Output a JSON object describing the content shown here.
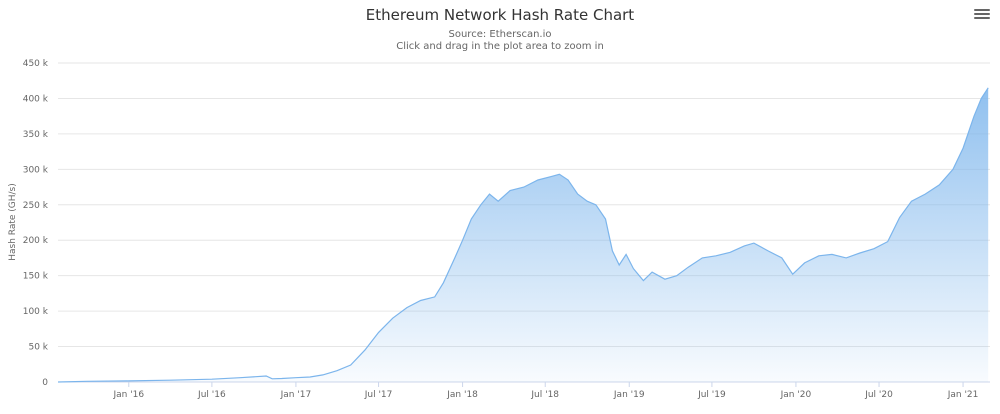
{
  "chart_data": {
    "type": "area",
    "title": "Ethereum Network Hash Rate Chart",
    "subtitle": "Source: Etherscan.io",
    "subtitle2": "Click and drag in the plot area to zoom in",
    "ylabel": "Hash Rate (GH/s)",
    "xlabel": "",
    "ylim": [
      0,
      450000
    ],
    "xlim": [
      "2015-07-30",
      "2021-03-01"
    ],
    "grid": true,
    "legend": "none",
    "series_color": "#7cb5ec",
    "y_ticks": [
      {
        "value": 0,
        "label": "0"
      },
      {
        "value": 50000,
        "label": "50 k"
      },
      {
        "value": 100000,
        "label": "100 k"
      },
      {
        "value": 150000,
        "label": "150 k"
      },
      {
        "value": 200000,
        "label": "200 k"
      },
      {
        "value": 250000,
        "label": "250 k"
      },
      {
        "value": 300000,
        "label": "300 k"
      },
      {
        "value": 350000,
        "label": "350 k"
      },
      {
        "value": 400000,
        "label": "400 k"
      },
      {
        "value": 450000,
        "label": "450 k"
      }
    ],
    "x_ticks": [
      {
        "date": "2016-01-01",
        "label": "Jan '16"
      },
      {
        "date": "2016-07-01",
        "label": "Jul '16"
      },
      {
        "date": "2017-01-01",
        "label": "Jan '17"
      },
      {
        "date": "2017-07-01",
        "label": "Jul '17"
      },
      {
        "date": "2018-01-01",
        "label": "Jan '18"
      },
      {
        "date": "2018-07-01",
        "label": "Jul '18"
      },
      {
        "date": "2019-01-01",
        "label": "Jan '19"
      },
      {
        "date": "2019-07-01",
        "label": "Jul '19"
      },
      {
        "date": "2020-01-01",
        "label": "Jan '20"
      },
      {
        "date": "2020-07-01",
        "label": "Jul '20"
      },
      {
        "date": "2021-01-01",
        "label": "Jan '21"
      }
    ],
    "series": [
      {
        "points": [
          [
            "2015-07-30",
            0
          ],
          [
            "2015-10-01",
            1000
          ],
          [
            "2016-01-01",
            1500
          ],
          [
            "2016-04-01",
            2500
          ],
          [
            "2016-07-01",
            4000
          ],
          [
            "2016-09-01",
            6000
          ],
          [
            "2016-10-28",
            8500
          ],
          [
            "2016-11-10",
            4500
          ],
          [
            "2016-12-01",
            5000
          ],
          [
            "2017-01-01",
            6000
          ],
          [
            "2017-02-01",
            7000
          ],
          [
            "2017-03-01",
            10000
          ],
          [
            "2017-04-01",
            16000
          ],
          [
            "2017-05-01",
            24000
          ],
          [
            "2017-06-01",
            45000
          ],
          [
            "2017-07-01",
            70000
          ],
          [
            "2017-08-01",
            90000
          ],
          [
            "2017-09-01",
            105000
          ],
          [
            "2017-10-01",
            115000
          ],
          [
            "2017-11-01",
            120000
          ],
          [
            "2017-11-20",
            140000
          ],
          [
            "2017-12-15",
            175000
          ],
          [
            "2018-01-01",
            200000
          ],
          [
            "2018-01-20",
            230000
          ],
          [
            "2018-02-10",
            250000
          ],
          [
            "2018-03-01",
            265000
          ],
          [
            "2018-03-20",
            255000
          ],
          [
            "2018-04-15",
            270000
          ],
          [
            "2018-05-15",
            275000
          ],
          [
            "2018-06-15",
            285000
          ],
          [
            "2018-07-15",
            290000
          ],
          [
            "2018-08-01",
            293000
          ],
          [
            "2018-08-20",
            285000
          ],
          [
            "2018-09-10",
            265000
          ],
          [
            "2018-10-01",
            255000
          ],
          [
            "2018-10-20",
            250000
          ],
          [
            "2018-11-10",
            230000
          ],
          [
            "2018-11-25",
            185000
          ],
          [
            "2018-12-10",
            165000
          ],
          [
            "2018-12-25",
            180000
          ],
          [
            "2019-01-10",
            160000
          ],
          [
            "2019-02-01",
            143000
          ],
          [
            "2019-02-20",
            155000
          ],
          [
            "2019-03-20",
            145000
          ],
          [
            "2019-04-15",
            150000
          ],
          [
            "2019-05-10",
            162000
          ],
          [
            "2019-06-10",
            175000
          ],
          [
            "2019-07-10",
            178000
          ],
          [
            "2019-08-10",
            183000
          ],
          [
            "2019-09-10",
            192000
          ],
          [
            "2019-10-01",
            196000
          ],
          [
            "2019-11-01",
            185000
          ],
          [
            "2019-12-01",
            175000
          ],
          [
            "2019-12-25",
            152000
          ],
          [
            "2020-01-20",
            168000
          ],
          [
            "2020-02-20",
            178000
          ],
          [
            "2020-03-20",
            180000
          ],
          [
            "2020-04-20",
            175000
          ],
          [
            "2020-05-20",
            182000
          ],
          [
            "2020-06-20",
            188000
          ],
          [
            "2020-07-20",
            198000
          ],
          [
            "2020-08-15",
            232000
          ],
          [
            "2020-09-10",
            255000
          ],
          [
            "2020-10-10",
            265000
          ],
          [
            "2020-11-10",
            278000
          ],
          [
            "2020-12-10",
            300000
          ],
          [
            "2021-01-01",
            330000
          ],
          [
            "2021-01-25",
            375000
          ],
          [
            "2021-02-10",
            400000
          ],
          [
            "2021-02-25",
            415000
          ]
        ]
      }
    ]
  }
}
